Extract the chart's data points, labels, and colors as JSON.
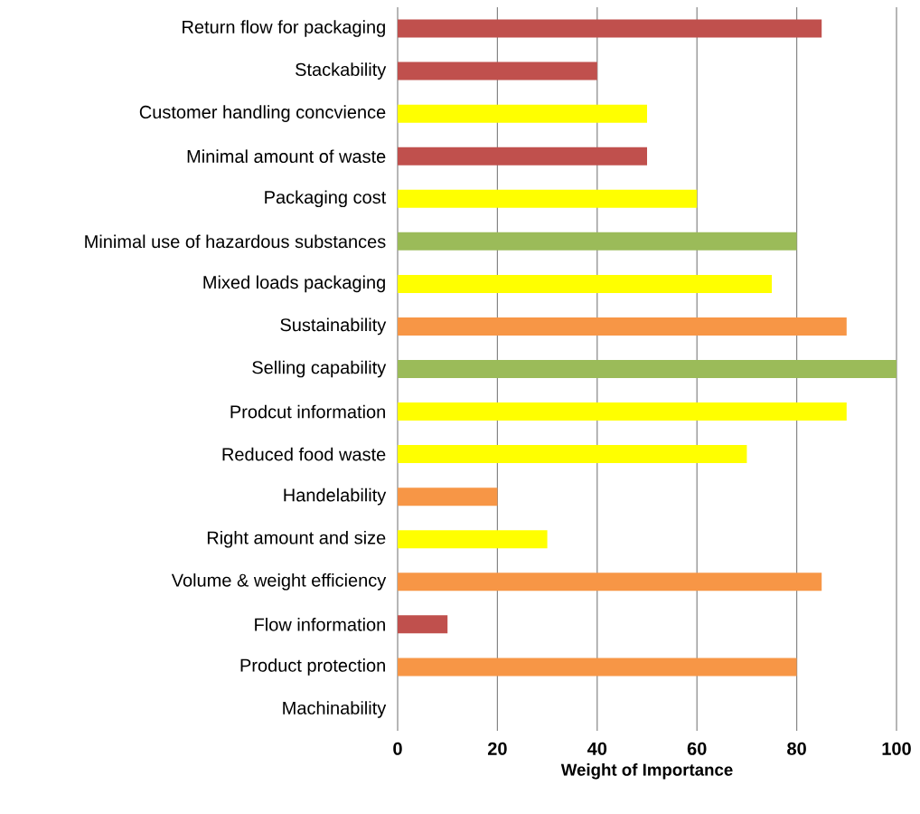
{
  "chart_data": {
    "type": "bar",
    "orientation": "horizontal",
    "xlabel": "Weight of Importance",
    "categories": [
      "Return flow for packaging",
      "Stackability",
      "Customer handling concvience",
      "Minimal amount of waste",
      "Packaging cost",
      "Minimal use of hazardous substances",
      "Mixed loads packaging",
      "Sustainability",
      "Selling capability",
      "Prodcut information",
      "Reduced food waste",
      "Handelability",
      "Right amount and size",
      "Volume & weight efficiency",
      "Flow information",
      "Product protection",
      "Machinability"
    ],
    "values": [
      85,
      40,
      50,
      50,
      60,
      80,
      75,
      90,
      100,
      90,
      70,
      20,
      30,
      85,
      10,
      80,
      0
    ],
    "colors": [
      "#c0504d",
      "#c0504d",
      "#ffff00",
      "#c0504d",
      "#ffff00",
      "#9bbb59",
      "#ffff00",
      "#f79646",
      "#9bbb59",
      "#ffff00",
      "#ffff00",
      "#f79646",
      "#ffff00",
      "#f79646",
      "#c0504d",
      "#f79646",
      null
    ],
    "xlim": [
      0,
      100
    ],
    "xticks": [
      0,
      20,
      40,
      60,
      80,
      100
    ],
    "grid": "x"
  }
}
